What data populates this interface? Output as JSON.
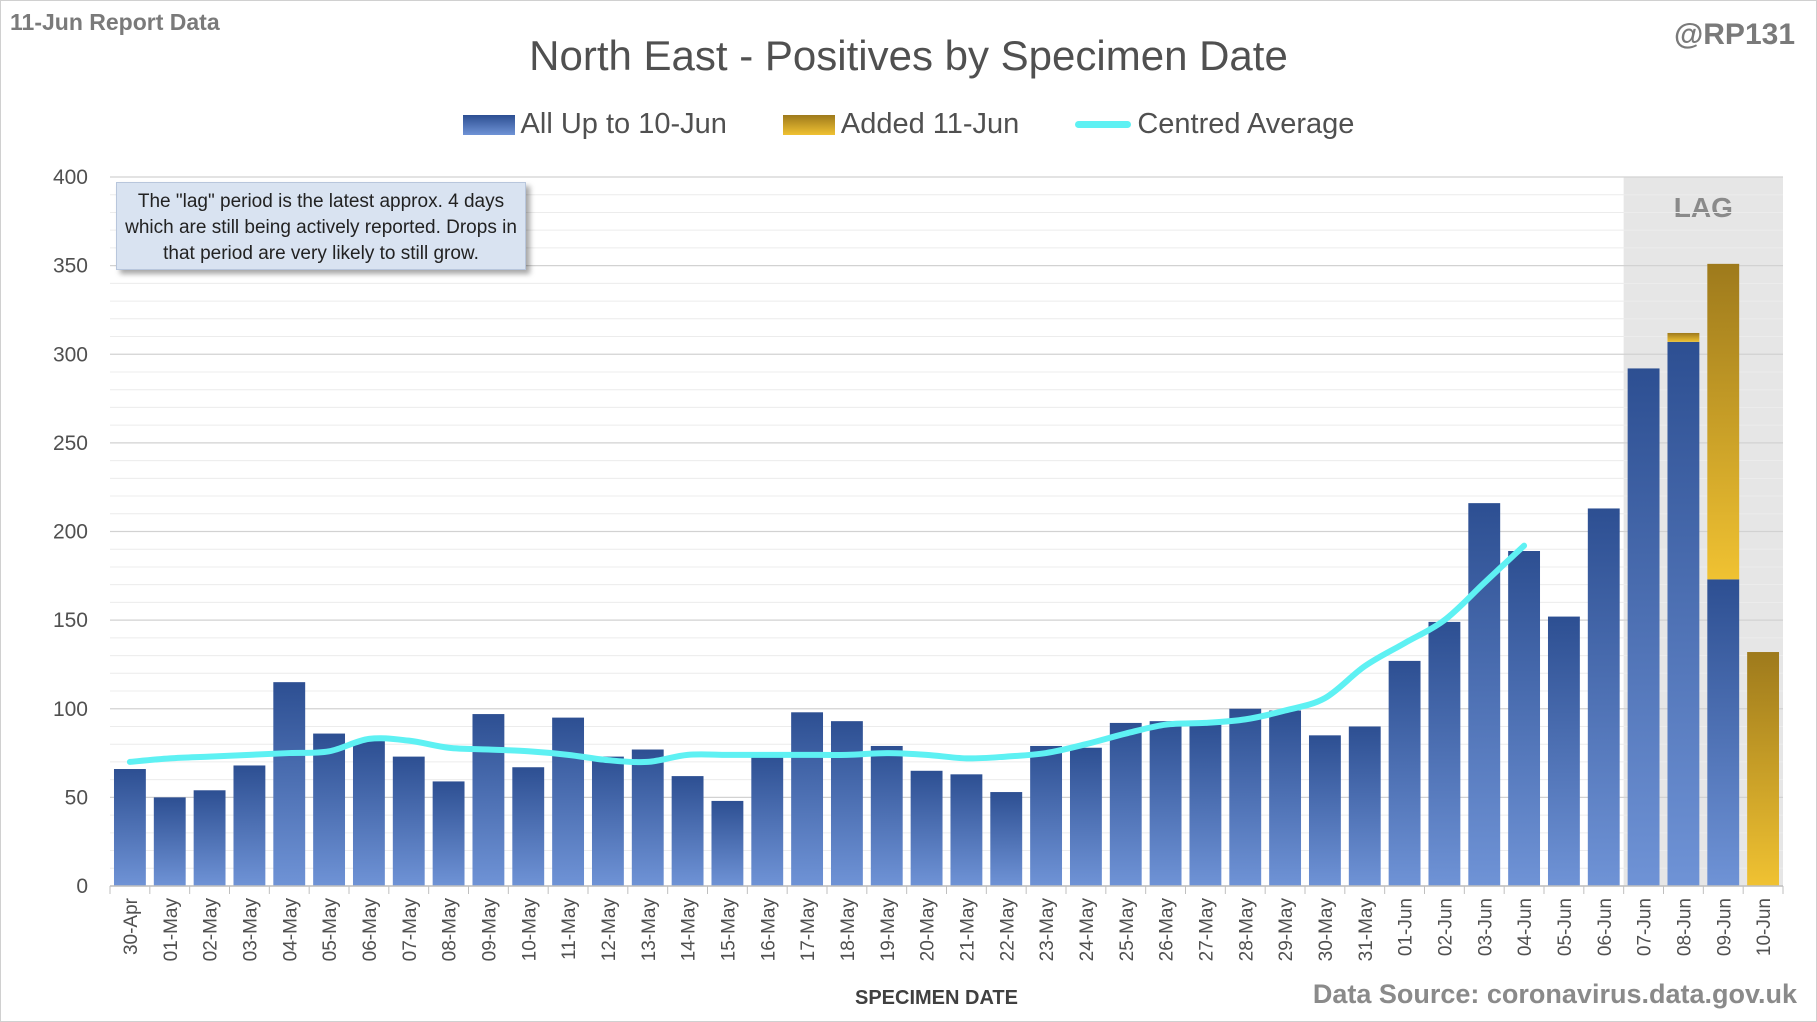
{
  "header": {
    "report_label": "11-Jun Report Data",
    "author": "@RP131"
  },
  "colors": {
    "bar_blue_top": "#2d4f92",
    "bar_blue_bottom": "#6f93d6",
    "bar_gold_top": "#9e7a1c",
    "bar_gold_bottom": "#f0c232",
    "average_line": "#5ef1f3",
    "lag_shade": "#e6e6e6"
  },
  "annotations": {
    "callout": "The \"lag\" period is the latest approx. 4 days which are still being actively reported.  Drops in that period are very likely to still grow.",
    "lag_label": "LAG",
    "source": "Data Source: coronavirus.data.gov.uk"
  },
  "chart_data": {
    "type": "bar",
    "title": "North East - Positives by Specimen Date",
    "xlabel": "SPECIMEN DATE",
    "ylabel": "",
    "ylim": [
      0,
      400
    ],
    "yticks": [
      0,
      50,
      100,
      150,
      200,
      250,
      300,
      350,
      400
    ],
    "grid": true,
    "stacked": true,
    "lag_categories": [
      "07-Jun",
      "08-Jun",
      "09-Jun",
      "10-Jun"
    ],
    "categories": [
      "30-Apr",
      "01-May",
      "02-May",
      "03-May",
      "04-May",
      "05-May",
      "06-May",
      "07-May",
      "08-May",
      "09-May",
      "10-May",
      "11-May",
      "12-May",
      "13-May",
      "14-May",
      "15-May",
      "16-May",
      "17-May",
      "18-May",
      "19-May",
      "20-May",
      "21-May",
      "22-May",
      "23-May",
      "24-May",
      "25-May",
      "26-May",
      "27-May",
      "28-May",
      "29-May",
      "30-May",
      "31-May",
      "01-Jun",
      "02-Jun",
      "03-Jun",
      "04-Jun",
      "05-Jun",
      "06-Jun",
      "07-Jun",
      "08-Jun",
      "09-Jun",
      "10-Jun"
    ],
    "series": [
      {
        "name": "All Up to 10-Jun",
        "values": [
          66,
          50,
          54,
          68,
          115,
          86,
          82,
          73,
          59,
          97,
          67,
          95,
          73,
          77,
          62,
          48,
          74,
          98,
          93,
          79,
          65,
          63,
          53,
          79,
          78,
          92,
          93,
          91,
          100,
          99,
          85,
          90,
          127,
          149,
          216,
          189,
          152,
          213,
          292,
          307,
          173,
          0
        ]
      },
      {
        "name": "Added 11-Jun",
        "values": [
          0,
          0,
          0,
          0,
          0,
          0,
          0,
          0,
          0,
          0,
          0,
          0,
          0,
          0,
          0,
          0,
          0,
          0,
          0,
          0,
          0,
          0,
          0,
          0,
          0,
          0,
          0,
          0,
          0,
          0,
          0,
          0,
          0,
          0,
          0,
          0,
          0,
          0,
          0,
          5,
          178,
          132
        ]
      },
      {
        "name": "Centred Average",
        "type": "line",
        "values": [
          70,
          72,
          73,
          74,
          75,
          76,
          83,
          82,
          78,
          77,
          76,
          74,
          71,
          70,
          74,
          74,
          74,
          74,
          74,
          75,
          74,
          72,
          73,
          75,
          80,
          86,
          91,
          92,
          94,
          99,
          106,
          124,
          137,
          150,
          171,
          192,
          null,
          null,
          null,
          null,
          null,
          null
        ]
      }
    ]
  }
}
